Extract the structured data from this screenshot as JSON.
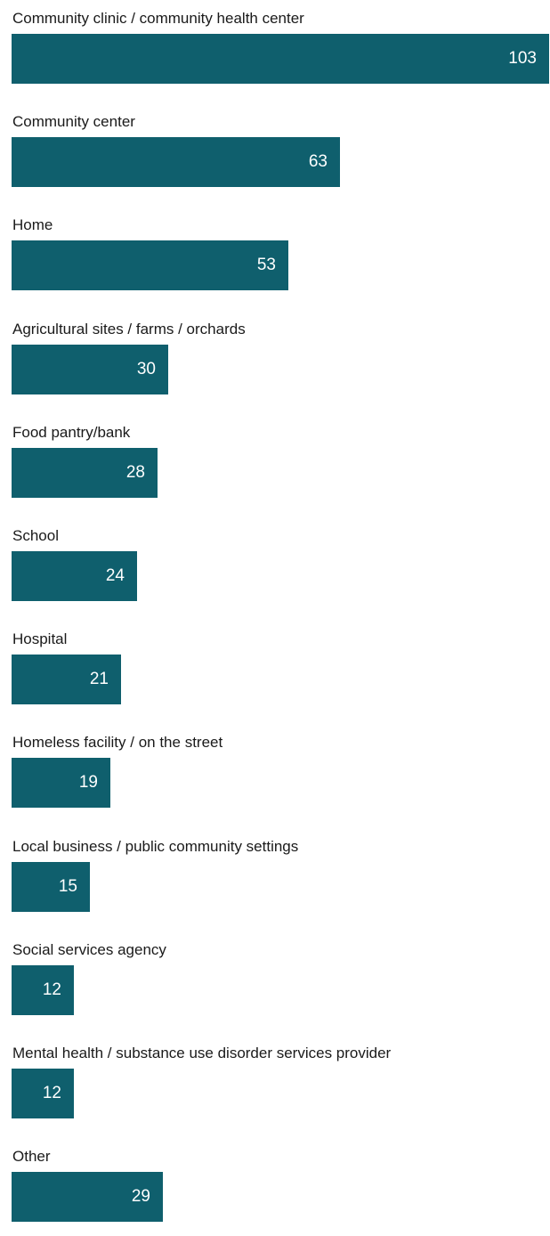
{
  "colors": {
    "bar": "#0f5f6d",
    "value_text": "#ffffff",
    "label_text": "#1a1a1a",
    "background": "#ffffff"
  },
  "chart_data": {
    "type": "bar",
    "orientation": "horizontal",
    "categories": [
      "Community clinic / community health center",
      "Community center",
      "Home",
      "Agricultural sites / farms / orchards",
      "Food pantry/bank",
      "School",
      "Hospital",
      "Homeless facility / on the street",
      "Local business / public community settings",
      "Social services agency",
      "Mental health / substance use disorder services provider",
      "Other"
    ],
    "values": [
      103,
      63,
      53,
      30,
      28,
      24,
      21,
      19,
      15,
      12,
      12,
      29
    ],
    "xlim": [
      0,
      103
    ],
    "grid": false,
    "legend": "none",
    "data_labels": "inside-end"
  }
}
